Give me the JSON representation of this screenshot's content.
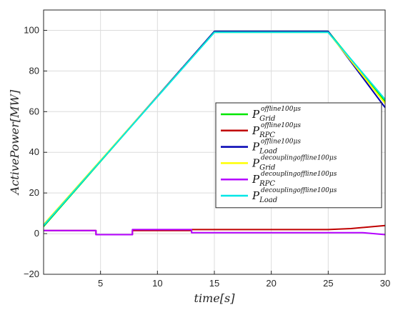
{
  "chart_data": {
    "type": "line",
    "xlabel": "time[s]",
    "ylabel": "ActivePower[MW]",
    "xlim": [
      0,
      30
    ],
    "ylim": [
      -20,
      110
    ],
    "xticks": [
      5,
      10,
      15,
      20,
      25,
      30
    ],
    "yticks": [
      -20,
      0,
      20,
      40,
      60,
      80,
      100
    ],
    "grid": true,
    "legend_position": "right",
    "series": [
      {
        "name": "P_Grid^offline100μs",
        "legend": {
          "base": "P",
          "sub": "Grid",
          "sup": "offline100μs"
        },
        "color": "#00e600",
        "x": [
          0,
          15,
          25,
          30
        ],
        "y": [
          3.5,
          99.5,
          99.5,
          65
        ]
      },
      {
        "name": "P_RPC^offline100μs",
        "legend": {
          "base": "P",
          "sub": "RPC",
          "sup": "offline100μs"
        },
        "color": "#c00000",
        "x": [
          0,
          4.6,
          4.6,
          7.8,
          7.8,
          13,
          13,
          25,
          27,
          30
        ],
        "y": [
          1.5,
          1.5,
          -0.5,
          -0.5,
          1.5,
          1.5,
          2,
          2,
          2.5,
          4
        ]
      },
      {
        "name": "P_Load^offline100μs",
        "legend": {
          "base": "P",
          "sub": "Load",
          "sup": "offline100μs"
        },
        "color": "#0000b3",
        "x": [
          0,
          15,
          25,
          30
        ],
        "y": [
          4,
          99.5,
          99.5,
          62
        ]
      },
      {
        "name": "P_Grid^decouplingoffline100μs",
        "legend": {
          "base": "P",
          "sub": "Grid",
          "sup": "decouplingoffline100μs"
        },
        "color": "#ffff00",
        "x": [
          0,
          15,
          25,
          30
        ],
        "y": [
          4.5,
          99,
          99,
          64
        ]
      },
      {
        "name": "P_RPC^decouplingoffline100μs",
        "legend": {
          "base": "P",
          "sub": "RPC",
          "sup": "decouplingoffline100μs"
        },
        "color": "#b400ff",
        "x": [
          0,
          4.6,
          4.6,
          7.8,
          7.8,
          13,
          13,
          25,
          26.5,
          28,
          30
        ],
        "y": [
          1.5,
          1.5,
          -0.5,
          -0.5,
          2,
          2,
          0.5,
          0.5,
          0.5,
          0.5,
          -0.5
        ]
      },
      {
        "name": "P_Load^decouplingoffline100μs",
        "legend": {
          "base": "P",
          "sub": "Load",
          "sup": "decouplingoffline100μs"
        },
        "color": "#00e6e6",
        "x": [
          0,
          15,
          25,
          30
        ],
        "y": [
          4,
          99,
          99,
          66
        ]
      }
    ]
  }
}
